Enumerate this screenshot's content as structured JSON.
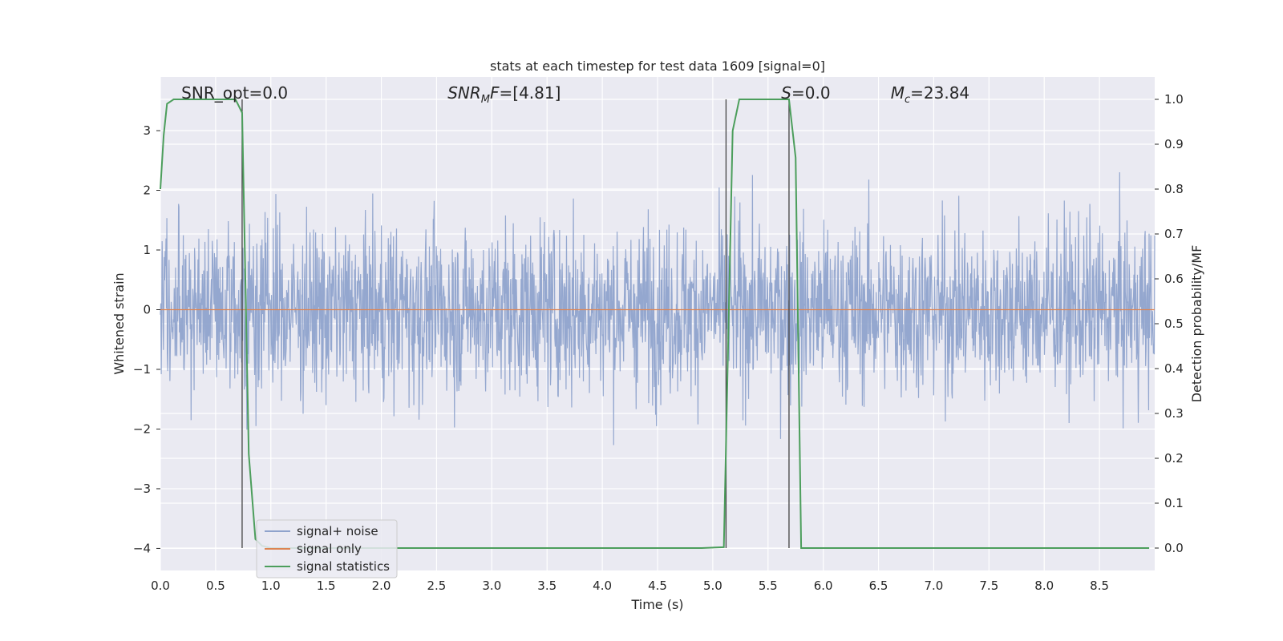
{
  "chart_data": {
    "type": "line",
    "title": "stats at each timestep for test data 1609 [signal=0]",
    "xlabel": "Time (s)",
    "ylabel_left": "Whitened strain",
    "ylabel_right": "Detection probability/MF",
    "xlim": [
      0,
      9.0
    ],
    "ylim_left": [
      -4.37,
      3.9
    ],
    "ylim_right": [
      -0.05,
      1.05
    ],
    "x_ticks": [
      0.0,
      0.5,
      1.0,
      1.5,
      2.0,
      2.5,
      3.0,
      3.5,
      4.0,
      4.5,
      5.0,
      5.5,
      6.0,
      6.5,
      7.0,
      7.5,
      8.0,
      8.5
    ],
    "x_tick_labels": [
      "0.0",
      "0.5",
      "1.0",
      "1.5",
      "2.0",
      "2.5",
      "3.0",
      "3.5",
      "4.0",
      "4.5",
      "5.0",
      "5.5",
      "6.0",
      "6.5",
      "7.0",
      "7.5",
      "8.0",
      "8.5"
    ],
    "y_left_ticks": [
      -4,
      -3,
      -2,
      -1,
      0,
      1,
      2,
      3
    ],
    "y_left_tick_labels": [
      "−4",
      "−3",
      "−2",
      "−1",
      "0",
      "1",
      "2",
      "3"
    ],
    "y_right_ticks": [
      0.0,
      0.1,
      0.2,
      0.3,
      0.4,
      0.5,
      0.6,
      0.7,
      0.8,
      0.9,
      1.0
    ],
    "y_right_tick_labels": [
      "0.0",
      "0.1",
      "0.2",
      "0.3",
      "0.4",
      "0.5",
      "0.6",
      "0.7",
      "0.8",
      "0.9",
      "1.0"
    ],
    "grid": true,
    "legend_position": "lower-left",
    "annotations": [
      {
        "id": "snr-opt",
        "parts": [
          {
            "t": "SNR_opt=0.0"
          }
        ],
        "x": 0.19
      },
      {
        "id": "snr-mf",
        "parts": [
          {
            "t": "SNR",
            "it": true
          },
          {
            "t": "M",
            "it": true,
            "sub": true
          },
          {
            "t": "F",
            "it": true
          },
          {
            "t": "=[4.81]"
          }
        ],
        "x": 2.6
      },
      {
        "id": "s-value",
        "parts": [
          {
            "t": "S",
            "it": true
          },
          {
            "t": "=0.0"
          }
        ],
        "x": 5.62
      },
      {
        "id": "chirp-mass",
        "parts": [
          {
            "t": "M",
            "it": true
          },
          {
            "t": "c",
            "it": true,
            "sub": true
          },
          {
            "t": "=23.84"
          }
        ],
        "x": 6.61
      }
    ],
    "vertical_lines": [
      0.74,
      5.12,
      5.69
    ],
    "series": [
      {
        "name": "signal+ noise",
        "color": "#8fa3cc",
        "kind": "noise",
        "amplitude_range": [
          -4.0,
          3.5
        ],
        "n_points": 2300
      },
      {
        "name": "signal only",
        "color": "#dd8452",
        "kind": "constant",
        "value": 0.0
      },
      {
        "name": "signal statistics",
        "color": "#4c9e5c",
        "axis": "right",
        "x": [
          0.0,
          0.03,
          0.06,
          0.12,
          0.2,
          0.4,
          0.6,
          0.68,
          0.74,
          0.8,
          0.86,
          0.92,
          1.0,
          2.0,
          3.0,
          4.0,
          4.9,
          5.1,
          5.18,
          5.24,
          5.3,
          5.5,
          5.69,
          5.75,
          5.8,
          5.85,
          6.0,
          7.0,
          8.0,
          8.95
        ],
        "values": [
          0.8,
          0.92,
          0.99,
          1.0,
          1.0,
          1.0,
          1.0,
          1.0,
          0.97,
          0.21,
          0.02,
          0.005,
          0.0,
          0.0,
          0.0,
          0.0,
          0.0,
          0.002,
          0.93,
          1.0,
          1.0,
          1.0,
          1.0,
          0.87,
          0.0,
          0.0,
          0.0,
          0.0,
          0.0,
          0.0
        ]
      }
    ]
  }
}
